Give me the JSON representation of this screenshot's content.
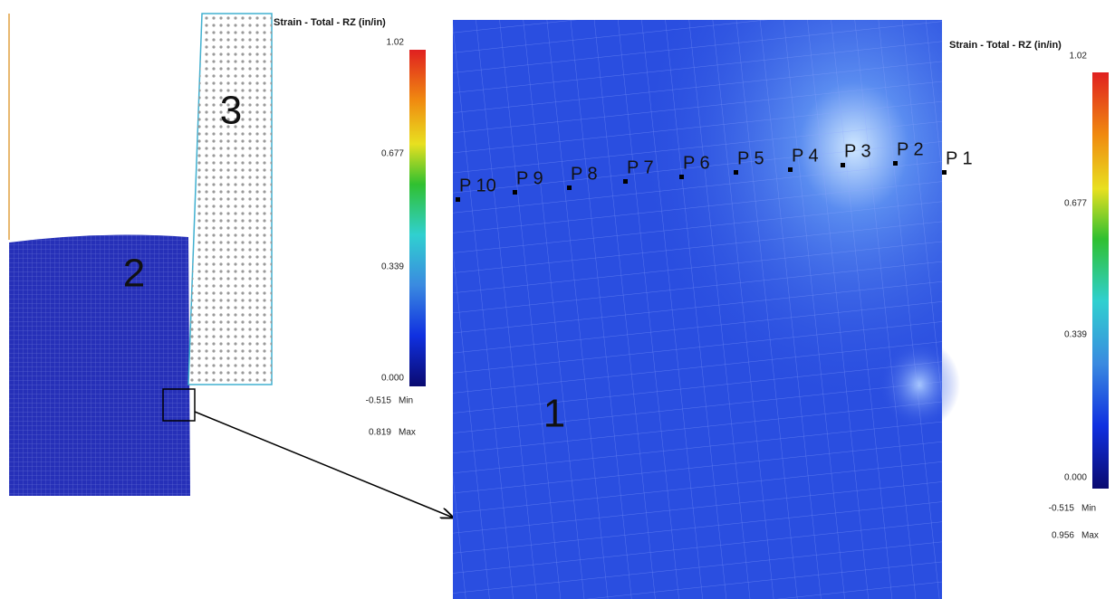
{
  "left_legend": {
    "title": "Strain - Total - RZ (in/in)",
    "ticks": [
      "1.02",
      "0.677",
      "0.339",
      "0.000"
    ],
    "min_value": "-0.515",
    "min_label": "Min",
    "max_value": "0.819",
    "max_label": "Max"
  },
  "right_legend": {
    "title": "Strain - Total - RZ (in/in)",
    "ticks": [
      "1.02",
      "0.677",
      "0.339",
      "0.000"
    ],
    "min_value": "-0.515",
    "min_label": "Min",
    "max_value": "0.956",
    "max_label": "Max"
  },
  "region_labels": [
    "3",
    "2",
    "1"
  ],
  "points": [
    "P 1",
    "P 2",
    "P 3",
    "P 4",
    "P 5",
    "P 6",
    "P 7",
    "P 8",
    "P 9",
    "P 10"
  ]
}
